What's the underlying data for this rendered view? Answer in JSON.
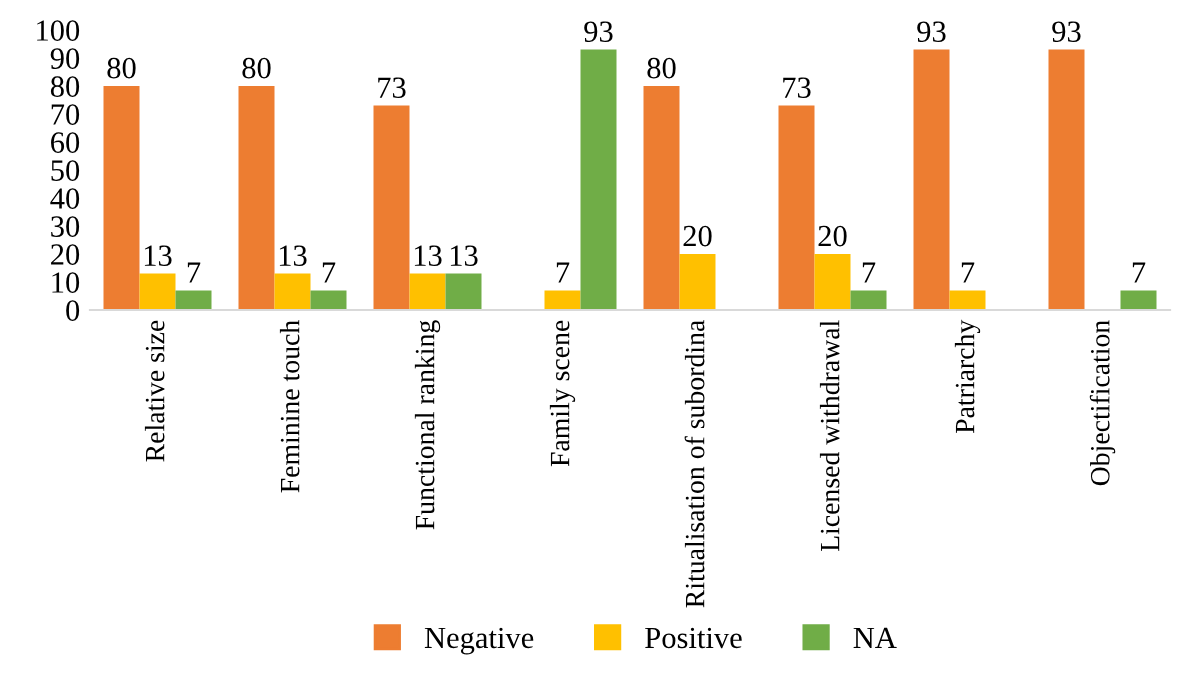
{
  "chart_data": {
    "type": "bar",
    "categories": [
      "Relative size",
      "Feminine touch",
      "Functional ranking",
      "Family scene",
      "Ritualisation of subordina",
      "Licensed withdrawal",
      "Patriarchy",
      "Objectification"
    ],
    "series": [
      {
        "name": "Negative",
        "color": "#ed7d31",
        "values": [
          80,
          80,
          73,
          null,
          80,
          73,
          93,
          93
        ]
      },
      {
        "name": "Positive",
        "color": "#ffc000",
        "values": [
          13,
          13,
          13,
          7,
          20,
          20,
          7,
          null
        ]
      },
      {
        "name": "NA",
        "color": "#70ad47",
        "values": [
          7,
          7,
          13,
          93,
          null,
          7,
          null,
          7
        ]
      }
    ],
    "ylim": [
      0,
      100
    ],
    "yticks": [
      0,
      10,
      20,
      30,
      40,
      50,
      60,
      70,
      80,
      90,
      100
    ],
    "grid": false,
    "legend": "bottom",
    "data_labels": true
  }
}
